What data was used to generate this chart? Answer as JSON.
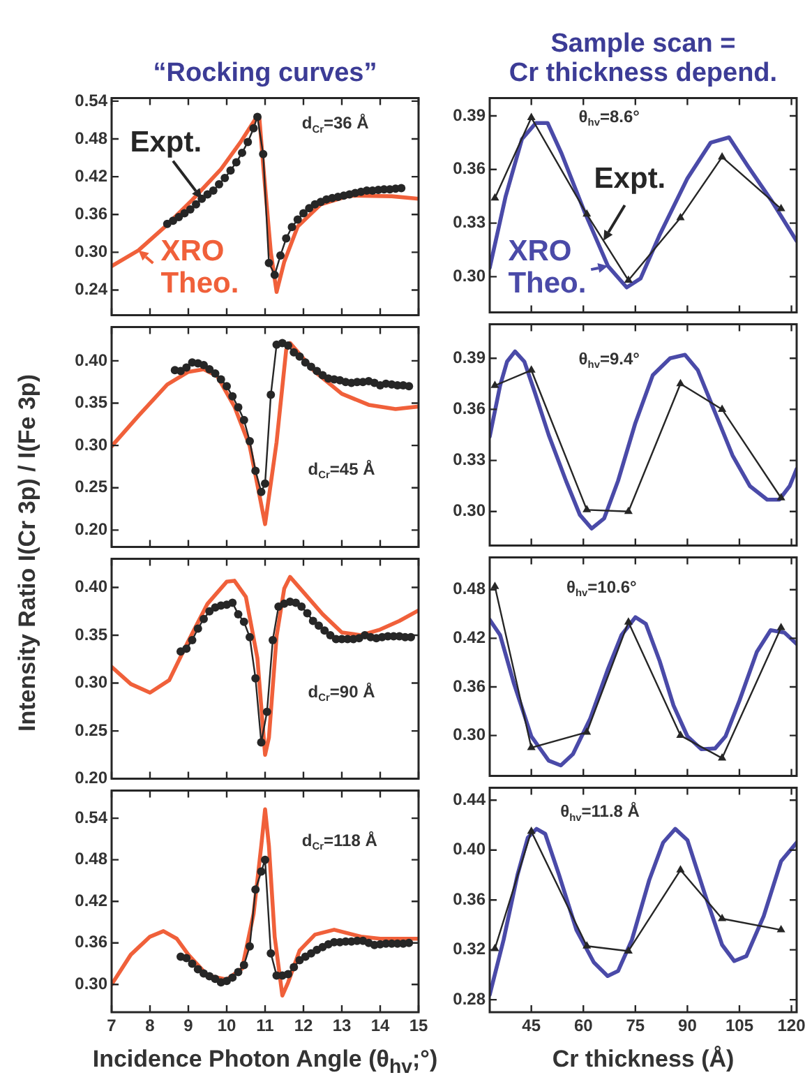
{
  "chart_data": [
    {
      "type": "line",
      "title": "“Rocking curves”",
      "annotations": [
        "d$_{Cr}$=36 Å"
      ],
      "xlim": [
        7,
        15
      ],
      "xticks": [
        7,
        8,
        9,
        10,
        11,
        12,
        13,
        14,
        15
      ],
      "ylim": [
        0.2,
        0.545
      ],
      "yticks": [
        0.24,
        {
          "value": 0.3,
          "label": "0.30"
        },
        0.36,
        0.42,
        0.48,
        0.54
      ],
      "tick_labels": "y",
      "grid": false,
      "legend": "left",
      "series": [
        {
          "name": "Expt.",
          "color": "#262626",
          "marker": "circle",
          "x": [
            8.45,
            8.6,
            8.75,
            8.9,
            9.05,
            9.2,
            9.35,
            9.5,
            9.65,
            9.8,
            9.95,
            10.1,
            10.25,
            10.4,
            10.55,
            10.7,
            10.8,
            10.95,
            11.1,
            11.25,
            11.4,
            11.55,
            11.7,
            11.85,
            12.0,
            12.15,
            12.3,
            12.45,
            12.6,
            12.75,
            12.9,
            13.05,
            13.2,
            13.35,
            13.5,
            13.65,
            13.8,
            13.95,
            14.1,
            14.25,
            14.4,
            14.55
          ],
          "values": [
            0.345,
            0.35,
            0.356,
            0.362,
            0.368,
            0.376,
            0.385,
            0.392,
            0.398,
            0.408,
            0.418,
            0.43,
            0.443,
            0.458,
            0.475,
            0.497,
            0.515,
            0.456,
            0.283,
            0.264,
            0.295,
            0.322,
            0.34,
            0.352,
            0.362,
            0.37,
            0.376,
            0.38,
            0.384,
            0.386,
            0.388,
            0.39,
            0.392,
            0.394,
            0.396,
            0.398,
            0.398,
            0.399,
            0.4,
            0.4,
            0.401,
            0.402
          ]
        },
        {
          "name": "XRO Theo.",
          "color": "#f0603a",
          "marker": "none",
          "x": [
            7,
            7.7,
            8.4,
            9.1,
            9.85,
            10.35,
            10.75,
            10.85,
            10.95,
            11.15,
            11.3,
            11.5,
            11.85,
            12.45,
            13.2,
            14.3,
            15
          ],
          "values": [
            0.278,
            0.303,
            0.341,
            0.383,
            0.432,
            0.474,
            0.512,
            0.514,
            0.439,
            0.3,
            0.237,
            0.285,
            0.341,
            0.376,
            0.39,
            0.389,
            0.385
          ]
        }
      ]
    },
    {
      "type": "line",
      "title": "Sample scan =\nCr thickness depend.",
      "annotations": [
        "θ$_{hv}$=8.6°"
      ],
      "xlim": [
        33,
        121.5
      ],
      "xticks": [
        45,
        60,
        75,
        90,
        105,
        120
      ],
      "ylim": [
        0.28,
        0.4
      ],
      "yticks": [
        {
          "value": 0.3,
          "label": "0.30"
        },
        0.33,
        0.36,
        0.39
      ],
      "tick_labels": "y",
      "grid": false,
      "legend": "bottom left",
      "series": [
        {
          "name": "Expt.",
          "color": "#262626",
          "marker": "triangle",
          "x": [
            34.5,
            45,
            61,
            73,
            88,
            100,
            117
          ],
          "values": [
            0.344,
            0.389,
            0.335,
            0.298,
            0.333,
            0.367,
            0.338
          ]
        },
        {
          "name": "XRO Theo.",
          "color": "#4a4aa8",
          "marker": "none",
          "x": [
            33,
            37.6,
            42.3,
            46.3,
            49.7,
            53.7,
            60.4,
            67.1,
            72.5,
            76.5,
            81.9,
            90,
            96.7,
            102,
            107.4,
            114.1,
            121.5
          ],
          "values": [
            0.305,
            0.345,
            0.377,
            0.386,
            0.386,
            0.369,
            0.336,
            0.306,
            0.294,
            0.299,
            0.323,
            0.355,
            0.375,
            0.378,
            0.362,
            0.343,
            0.32
          ]
        }
      ]
    },
    {
      "type": "line",
      "ylabel": "Intensity Ratio I(Cr 3p) / I(Fe 3p)",
      "annotations": [
        "d$_{Cr}$=45 Å"
      ],
      "xlim": [
        7,
        15
      ],
      "xticks": [
        7,
        8,
        9,
        10,
        11,
        12,
        13,
        14,
        15
      ],
      "ylim": [
        0.18,
        0.44
      ],
      "yticks": [
        {
          "value": 0.2,
          "label": "0.20"
        },
        0.25,
        {
          "value": 0.3,
          "label": "0.30"
        },
        0.35,
        {
          "value": 0.4,
          "label": "0.40"
        }
      ],
      "tick_labels": "y",
      "grid": false,
      "legend": false,
      "series": [
        {
          "color": "#262626",
          "marker": "circle",
          "x": [
            8.65,
            8.8,
            8.95,
            9.1,
            9.25,
            9.4,
            9.55,
            9.7,
            9.85,
            10.0,
            10.15,
            10.3,
            10.45,
            10.6,
            10.75,
            10.9,
            11.0,
            11.15,
            11.3,
            11.45,
            11.6,
            11.75,
            11.9,
            12.05,
            12.2,
            12.35,
            12.5,
            12.65,
            12.8,
            12.95,
            13.1,
            13.25,
            13.4,
            13.55,
            13.7,
            13.85,
            14.0,
            14.15,
            14.3,
            14.45,
            14.6,
            14.75
          ],
          "values": [
            0.389,
            0.388,
            0.392,
            0.398,
            0.397,
            0.395,
            0.39,
            0.385,
            0.378,
            0.37,
            0.358,
            0.345,
            0.33,
            0.305,
            0.27,
            0.245,
            0.255,
            0.36,
            0.419,
            0.421,
            0.418,
            0.41,
            0.405,
            0.398,
            0.393,
            0.388,
            0.383,
            0.379,
            0.378,
            0.377,
            0.375,
            0.374,
            0.375,
            0.375,
            0.376,
            0.374,
            0.371,
            0.373,
            0.372,
            0.371,
            0.371,
            0.37
          ]
        },
        {
          "color": "#f0603a",
          "marker": "none",
          "x": [
            7,
            7.7,
            8.45,
            9.0,
            9.4,
            9.75,
            10.2,
            10.6,
            10.85,
            11.0,
            11.3,
            11.55,
            11.65,
            12.3,
            13.0,
            13.7,
            14.4,
            15
          ],
          "values": [
            0.299,
            0.335,
            0.372,
            0.387,
            0.39,
            0.382,
            0.346,
            0.299,
            0.242,
            0.207,
            0.304,
            0.413,
            0.421,
            0.387,
            0.361,
            0.348,
            0.343,
            0.346
          ]
        }
      ]
    },
    {
      "type": "line",
      "annotations": [
        "θ$_{hv}$=9.4°"
      ],
      "xlim": [
        33,
        121.5
      ],
      "xticks": [
        45,
        60,
        75,
        90,
        105,
        120
      ],
      "ylim": [
        0.28,
        0.41
      ],
      "yticks": [
        {
          "value": 0.3,
          "label": "0.30"
        },
        0.33,
        0.36,
        0.39
      ],
      "tick_labels": "y",
      "grid": false,
      "legend": false,
      "series": [
        {
          "color": "#262626",
          "marker": "triangle",
          "x": [
            34.5,
            45,
            61,
            73,
            88,
            100,
            117
          ],
          "values": [
            0.374,
            0.383,
            0.301,
            0.3,
            0.375,
            0.36,
            0.308
          ]
        },
        {
          "color": "#4a4aa8",
          "marker": "none",
          "x": [
            33,
            36,
            38,
            40.3,
            43,
            46,
            50,
            55,
            59,
            62.4,
            66,
            70,
            75,
            80,
            85,
            89.3,
            93,
            98,
            103,
            108,
            113,
            116.5,
            119.5,
            121.5
          ],
          "values": [
            0.344,
            0.374,
            0.388,
            0.394,
            0.388,
            0.37,
            0.345,
            0.318,
            0.298,
            0.29,
            0.296,
            0.318,
            0.352,
            0.38,
            0.39,
            0.392,
            0.383,
            0.358,
            0.333,
            0.315,
            0.307,
            0.307,
            0.315,
            0.325
          ]
        }
      ]
    },
    {
      "type": "line",
      "annotations": [
        "d$_{Cr}$=90 Å"
      ],
      "xlim": [
        7,
        15
      ],
      "xticks": [
        7,
        8,
        9,
        10,
        11,
        12,
        13,
        14,
        15
      ],
      "ylim": [
        0.2,
        0.43
      ],
      "yticks": [
        {
          "value": 0.2,
          "label": "0.20"
        },
        0.25,
        {
          "value": 0.3,
          "label": "0.30"
        },
        0.35,
        {
          "value": 0.4,
          "label": "0.40"
        }
      ],
      "tick_labels": "y",
      "grid": false,
      "legend": false,
      "series": [
        {
          "color": "#262626",
          "marker": "circle",
          "x": [
            8.8,
            8.95,
            9.1,
            9.25,
            9.4,
            9.55,
            9.7,
            9.85,
            10.0,
            10.15,
            10.3,
            10.45,
            10.6,
            10.75,
            10.9,
            11.05,
            11.2,
            11.35,
            11.5,
            11.65,
            11.8,
            11.95,
            12.1,
            12.25,
            12.4,
            12.55,
            12.7,
            12.85,
            13.0,
            13.15,
            13.3,
            13.45,
            13.6,
            13.75,
            13.9,
            14.05,
            14.2,
            14.35,
            14.5,
            14.65,
            14.8
          ],
          "values": [
            0.333,
            0.336,
            0.345,
            0.357,
            0.367,
            0.375,
            0.379,
            0.381,
            0.382,
            0.384,
            0.372,
            0.364,
            0.348,
            0.305,
            0.238,
            0.27,
            0.345,
            0.38,
            0.383,
            0.385,
            0.384,
            0.38,
            0.373,
            0.365,
            0.36,
            0.355,
            0.35,
            0.346,
            0.346,
            0.346,
            0.346,
            0.347,
            0.35,
            0.348,
            0.347,
            0.348,
            0.349,
            0.349,
            0.349,
            0.348,
            0.348
          ]
        },
        {
          "color": "#f0603a",
          "marker": "none",
          "x": [
            7,
            7.5,
            8.0,
            8.5,
            9.0,
            9.5,
            10.0,
            10.2,
            10.5,
            10.8,
            11.0,
            11.1,
            11.3,
            11.5,
            11.65,
            12.0,
            12.5,
            13.0,
            13.5,
            14.0,
            14.5,
            15
          ],
          "values": [
            0.317,
            0.299,
            0.29,
            0.303,
            0.344,
            0.383,
            0.406,
            0.407,
            0.39,
            0.326,
            0.225,
            0.243,
            0.349,
            0.399,
            0.411,
            0.395,
            0.372,
            0.353,
            0.35,
            0.356,
            0.365,
            0.376
          ]
        }
      ]
    },
    {
      "type": "line",
      "annotations": [
        "θ$_{hv}$=10.6°"
      ],
      "xlim": [
        33,
        121.5
      ],
      "xticks": [
        45,
        60,
        75,
        90,
        105,
        120
      ],
      "ylim": [
        0.25,
        0.52
      ],
      "yticks": [
        {
          "value": 0.3,
          "label": "0.30"
        },
        0.36,
        0.42,
        0.48
      ],
      "tick_labels": "y",
      "grid": false,
      "legend": false,
      "series": [
        {
          "color": "#262626",
          "marker": "triangle",
          "x": [
            34.5,
            45,
            61,
            73,
            88,
            100,
            117
          ],
          "values": [
            0.484,
            0.285,
            0.304,
            0.44,
            0.3,
            0.272,
            0.433
          ]
        },
        {
          "color": "#4a4aa8",
          "marker": "none",
          "x": [
            33,
            36,
            40,
            45,
            50,
            53.5,
            57,
            62,
            67,
            71,
            75,
            78,
            82,
            86,
            90,
            94,
            98,
            101,
            105,
            110,
            114,
            118,
            121.5
          ],
          "values": [
            0.443,
            0.424,
            0.364,
            0.299,
            0.269,
            0.263,
            0.277,
            0.321,
            0.381,
            0.424,
            0.446,
            0.438,
            0.392,
            0.337,
            0.299,
            0.283,
            0.284,
            0.299,
            0.343,
            0.403,
            0.43,
            0.427,
            0.413
          ]
        }
      ]
    },
    {
      "type": "line",
      "xlabel": "Incidence Photon Angle (θ$_{hv}$;°)",
      "annotations": [
        "d$_{Cr}$=118 Å"
      ],
      "xlim": [
        7,
        15
      ],
      "xticks": [
        7,
        8,
        9,
        10,
        11,
        12,
        13,
        14,
        15
      ],
      "ylim": [
        0.26,
        0.58
      ],
      "yticks": [
        {
          "value": 0.3,
          "label": "0.30"
        },
        0.36,
        0.42,
        0.48,
        0.54
      ],
      "grid": false,
      "legend": false,
      "series": [
        {
          "color": "#262626",
          "marker": "circle",
          "x": [
            8.8,
            8.95,
            9.1,
            9.25,
            9.4,
            9.55,
            9.7,
            9.85,
            10.0,
            10.15,
            10.3,
            10.45,
            10.6,
            10.75,
            10.9,
            11.0,
            11.15,
            11.3,
            11.45,
            11.6,
            11.75,
            11.9,
            12.05,
            12.2,
            12.35,
            12.5,
            12.65,
            12.8,
            12.95,
            13.1,
            13.25,
            13.4,
            13.55,
            13.7,
            13.85,
            14.0,
            14.15,
            14.3,
            14.45,
            14.6,
            14.75
          ],
          "values": [
            0.34,
            0.338,
            0.33,
            0.322,
            0.316,
            0.312,
            0.308,
            0.303,
            0.305,
            0.31,
            0.318,
            0.328,
            0.355,
            0.437,
            0.463,
            0.48,
            0.345,
            0.313,
            0.313,
            0.315,
            0.325,
            0.335,
            0.34,
            0.345,
            0.35,
            0.354,
            0.358,
            0.361,
            0.361,
            0.362,
            0.362,
            0.363,
            0.363,
            0.36,
            0.357,
            0.358,
            0.359,
            0.359,
            0.359,
            0.359,
            0.36
          ]
        },
        {
          "color": "#f0603a",
          "marker": "none",
          "x": [
            7,
            7.5,
            8.0,
            8.35,
            8.7,
            9.0,
            9.5,
            10.0,
            10.4,
            10.7,
            10.9,
            11.0,
            11.1,
            11.25,
            11.45,
            11.6,
            11.9,
            12.3,
            12.8,
            13.5,
            14.0,
            15
          ],
          "values": [
            0.3,
            0.343,
            0.369,
            0.377,
            0.366,
            0.343,
            0.313,
            0.307,
            0.323,
            0.402,
            0.5,
            0.553,
            0.5,
            0.369,
            0.284,
            0.303,
            0.349,
            0.372,
            0.379,
            0.369,
            0.366,
            0.366
          ]
        }
      ]
    },
    {
      "type": "line",
      "xlabel": "Cr thickness (Å)",
      "annotations": [
        "θ$_{hv}$=11.8 Å"
      ],
      "xlim": [
        33,
        121.5
      ],
      "xticks": [
        45,
        60,
        75,
        90,
        105,
        120
      ],
      "ylim": [
        0.27,
        0.45
      ],
      "yticks": [
        0.28,
        0.32,
        0.36,
        {
          "value": 0.4,
          "label": "0.40"
        },
        0.44
      ],
      "grid": false,
      "legend": false,
      "series": [
        {
          "color": "#262626",
          "marker": "triangle",
          "x": [
            34.5,
            45,
            61,
            73,
            88,
            100,
            117
          ],
          "values": [
            0.321,
            0.415,
            0.323,
            0.319,
            0.384,
            0.345,
            0.336
          ]
        },
        {
          "color": "#4a4aa8",
          "marker": "none",
          "x": [
            33,
            37,
            41,
            44,
            46.5,
            49,
            53,
            58,
            63,
            67,
            70,
            74,
            79,
            83,
            86.5,
            90,
            95,
            100,
            103.5,
            107,
            112,
            117,
            121.5
          ],
          "values": [
            0.284,
            0.328,
            0.38,
            0.41,
            0.417,
            0.413,
            0.38,
            0.336,
            0.31,
            0.299,
            0.303,
            0.328,
            0.376,
            0.406,
            0.417,
            0.408,
            0.365,
            0.324,
            0.311,
            0.315,
            0.347,
            0.391,
            0.406
          ]
        }
      ]
    }
  ]
}
